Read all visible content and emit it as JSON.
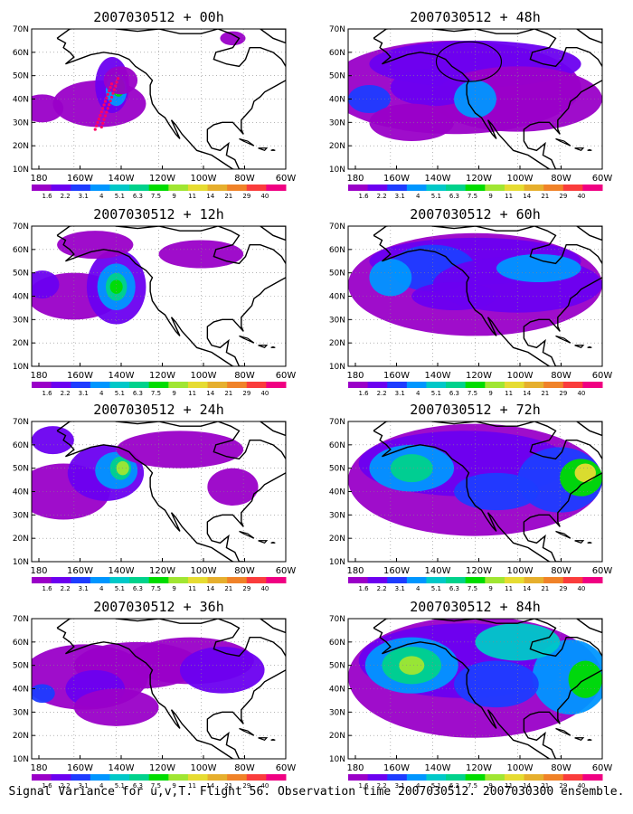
{
  "figure": {
    "caption": "Signal Variance for u,v,T. Flight 56. Observation time 2007030512. 2007030300 ensemble.",
    "lat_labels": [
      "70N",
      "60N",
      "50N",
      "40N",
      "30N",
      "20N",
      "10N"
    ],
    "lon_labels": [
      "180",
      "160W",
      "140W",
      "120W",
      "100W",
      "80W",
      "60W"
    ],
    "colorbar": {
      "labels": [
        "1.6",
        "2.2",
        "3.1",
        "4",
        "5.1",
        "6.3",
        "7.5",
        "9",
        "11",
        "14",
        "21",
        "29",
        "40"
      ],
      "colors": [
        "#9a00c8",
        "#6c00f0",
        "#1e3cff",
        "#0096ff",
        "#00c8c8",
        "#00d28c",
        "#00dc00",
        "#a0e632",
        "#e6dc32",
        "#e6af2d",
        "#f08228",
        "#fa3c3c",
        "#f00082"
      ]
    },
    "colors": {
      "land_outline": "#000000",
      "background": "#ffffff",
      "track": "#ff0066"
    }
  },
  "panels": [
    {
      "title": "2007030512 + 00h",
      "lead_hours": 0
    },
    {
      "title": "2007030512 + 12h",
      "lead_hours": 12
    },
    {
      "title": "2007030512 + 24h",
      "lead_hours": 24
    },
    {
      "title": "2007030512 + 36h",
      "lead_hours": 36
    },
    {
      "title": "2007030512 + 48h",
      "lead_hours": 48
    },
    {
      "title": "2007030512 + 60h",
      "lead_hours": 60
    },
    {
      "title": "2007030512 + 72h",
      "lead_hours": 72
    },
    {
      "title": "2007030512 + 84h",
      "lead_hours": 84
    }
  ]
}
